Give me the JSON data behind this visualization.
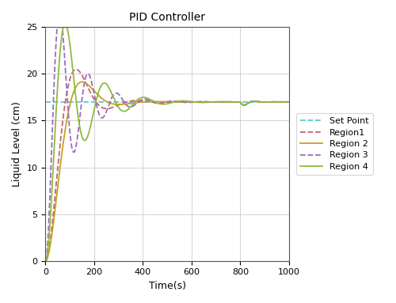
{
  "title": "PID Controller",
  "xlabel": "Time(s)",
  "ylabel": "Liquid Level (cm)",
  "xlim": [
    0,
    1000
  ],
  "ylim": [
    0,
    25
  ],
  "xticks": [
    0,
    200,
    400,
    600,
    800,
    1000
  ],
  "yticks": [
    0,
    5,
    10,
    15,
    20,
    25
  ],
  "sp": 17,
  "colors": {
    "setpoint": "#5bc8d4",
    "region1": "#c1666b",
    "region2": "#c8a020",
    "region3": "#9b6bbf",
    "region4": "#8fbb40"
  },
  "linestyles": {
    "setpoint": "--",
    "region1": "--",
    "region2": "-",
    "region3": "--",
    "region4": "-"
  },
  "legend_labels": [
    "Set Point",
    "Region1",
    "Region 2",
    "Region 3",
    "Region 4"
  ],
  "figsize": [
    5.0,
    3.83
  ],
  "dpi": 100
}
